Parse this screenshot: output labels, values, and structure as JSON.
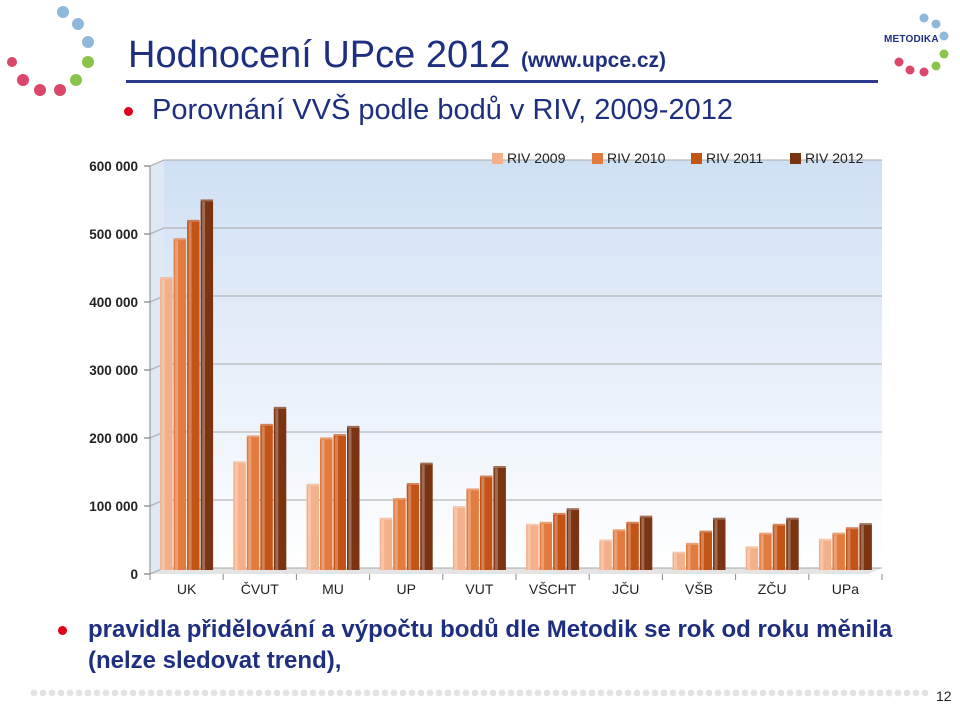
{
  "header": {
    "title": "Hodnocení UPce 2012",
    "title_url": "(www.upce.cz)",
    "subtitle": "Porovnání VVŠ podle bodů v RIV, 2009-2012",
    "logo_text": "METODIKA"
  },
  "footer": {
    "bullet_text": "pravidla přidělování a výpočtu bodů dle Metodik se rok od roku měnila (nelze sledovat trend),",
    "page_number": "12"
  },
  "colors": {
    "title": "#1f2f80",
    "bullet": "#e0001b",
    "series": [
      "#f4b08a",
      "#e37b3f",
      "#c45316",
      "#7b3411"
    ]
  },
  "chart_data": {
    "type": "bar",
    "categories": [
      "UK",
      "ČVUT",
      "MU",
      "UP",
      "VUT",
      "VŠCHT",
      "JČU",
      "VŠB",
      "ZČU",
      "UPa"
    ],
    "series": [
      {
        "name": "RIV 2009",
        "values": [
          428000,
          157000,
          124000,
          74000,
          91000,
          65000,
          42000,
          24000,
          32000,
          43000
        ]
      },
      {
        "name": "RIV 2010",
        "values": [
          485000,
          195000,
          192000,
          103000,
          117000,
          68000,
          57000,
          37000,
          52000,
          52000
        ]
      },
      {
        "name": "RIV 2011",
        "values": [
          512000,
          212000,
          197000,
          125000,
          136000,
          81000,
          68000,
          55000,
          65000,
          60000
        ]
      },
      {
        "name": "RIV 2012",
        "values": [
          542000,
          237000,
          209000,
          155000,
          150000,
          88000,
          77000,
          74000,
          74000,
          66000
        ]
      }
    ],
    "yticks": [
      "0",
      "100 000",
      "200 000",
      "300 000",
      "400 000",
      "500 000",
      "600 000"
    ],
    "ylim": [
      0,
      600000
    ],
    "grid": true,
    "legend_position": "top-right"
  }
}
